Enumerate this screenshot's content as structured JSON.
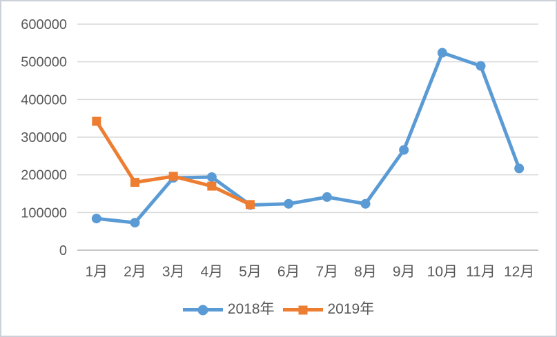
{
  "chart_data": {
    "type": "line",
    "title": "",
    "xlabel": "",
    "ylabel": "",
    "categories": [
      "1月",
      "2月",
      "3月",
      "4月",
      "5月",
      "6月",
      "7月",
      "8月",
      "9月",
      "10月",
      "11月",
      "12月"
    ],
    "series": [
      {
        "name": "2018年",
        "color": "#5B9BD5",
        "marker": "circle",
        "values": [
          84000,
          73000,
          192000,
          194000,
          120000,
          123000,
          141000,
          123000,
          266000,
          524000,
          489000,
          217000
        ]
      },
      {
        "name": "2019年",
        "color": "#ED7D31",
        "marker": "square",
        "values": [
          342000,
          180000,
          196000,
          170000,
          121000
        ]
      }
    ],
    "ylim": [
      0,
      600000
    ],
    "ytick_interval": 100000,
    "ytick_labels": [
      "0",
      "100000",
      "200000",
      "300000",
      "400000",
      "500000",
      "600000"
    ],
    "grid": true,
    "legend_position": "bottom",
    "colors": {
      "axis_label": "#595959",
      "gridline": "#D9D9D9",
      "axis_line": "#C6C6C6"
    }
  }
}
